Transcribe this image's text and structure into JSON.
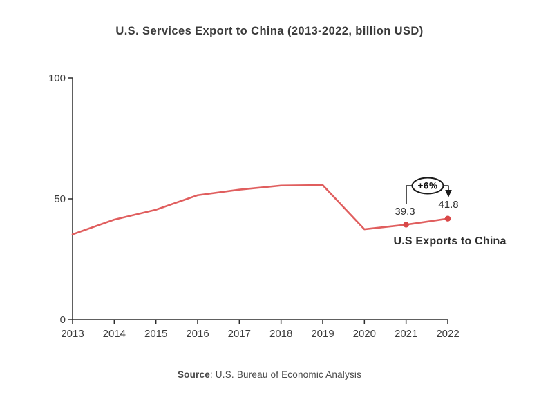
{
  "title": "U.S. Services Export to China (2013-2022, billion USD)",
  "source": {
    "label": "Source",
    "rest": ": U.S. Bureau of Economic Analysis"
  },
  "colors": {
    "line": "#e05e5e",
    "marker": "#d94848",
    "axis": "#2b2b2b",
    "annotation": "#1a1a1a",
    "text": "#3b3b3b"
  },
  "chart_data": {
    "type": "line",
    "title": "U.S. Services Export to China (2013-2022, billion USD)",
    "categories": [
      "2013",
      "2014",
      "2015",
      "2016",
      "2017",
      "2018",
      "2019",
      "2020",
      "2021",
      "2022"
    ],
    "series": [
      {
        "name": "U.S Exports to China",
        "values": [
          35.3,
          41.4,
          45.5,
          51.5,
          53.8,
          55.5,
          55.7,
          37.4,
          39.3,
          41.8
        ]
      }
    ],
    "xlabel": "",
    "ylabel": "",
    "ylim": [
      0,
      100
    ],
    "yticks": [
      0,
      50,
      100
    ],
    "grid": false,
    "legend_position": "none",
    "marker_indices": [
      8,
      9
    ],
    "annotations": {
      "pct_label": "+6%",
      "start_value_label": "39.3",
      "end_value_label": "41.8",
      "series_label": "U.S Exports to China"
    }
  }
}
